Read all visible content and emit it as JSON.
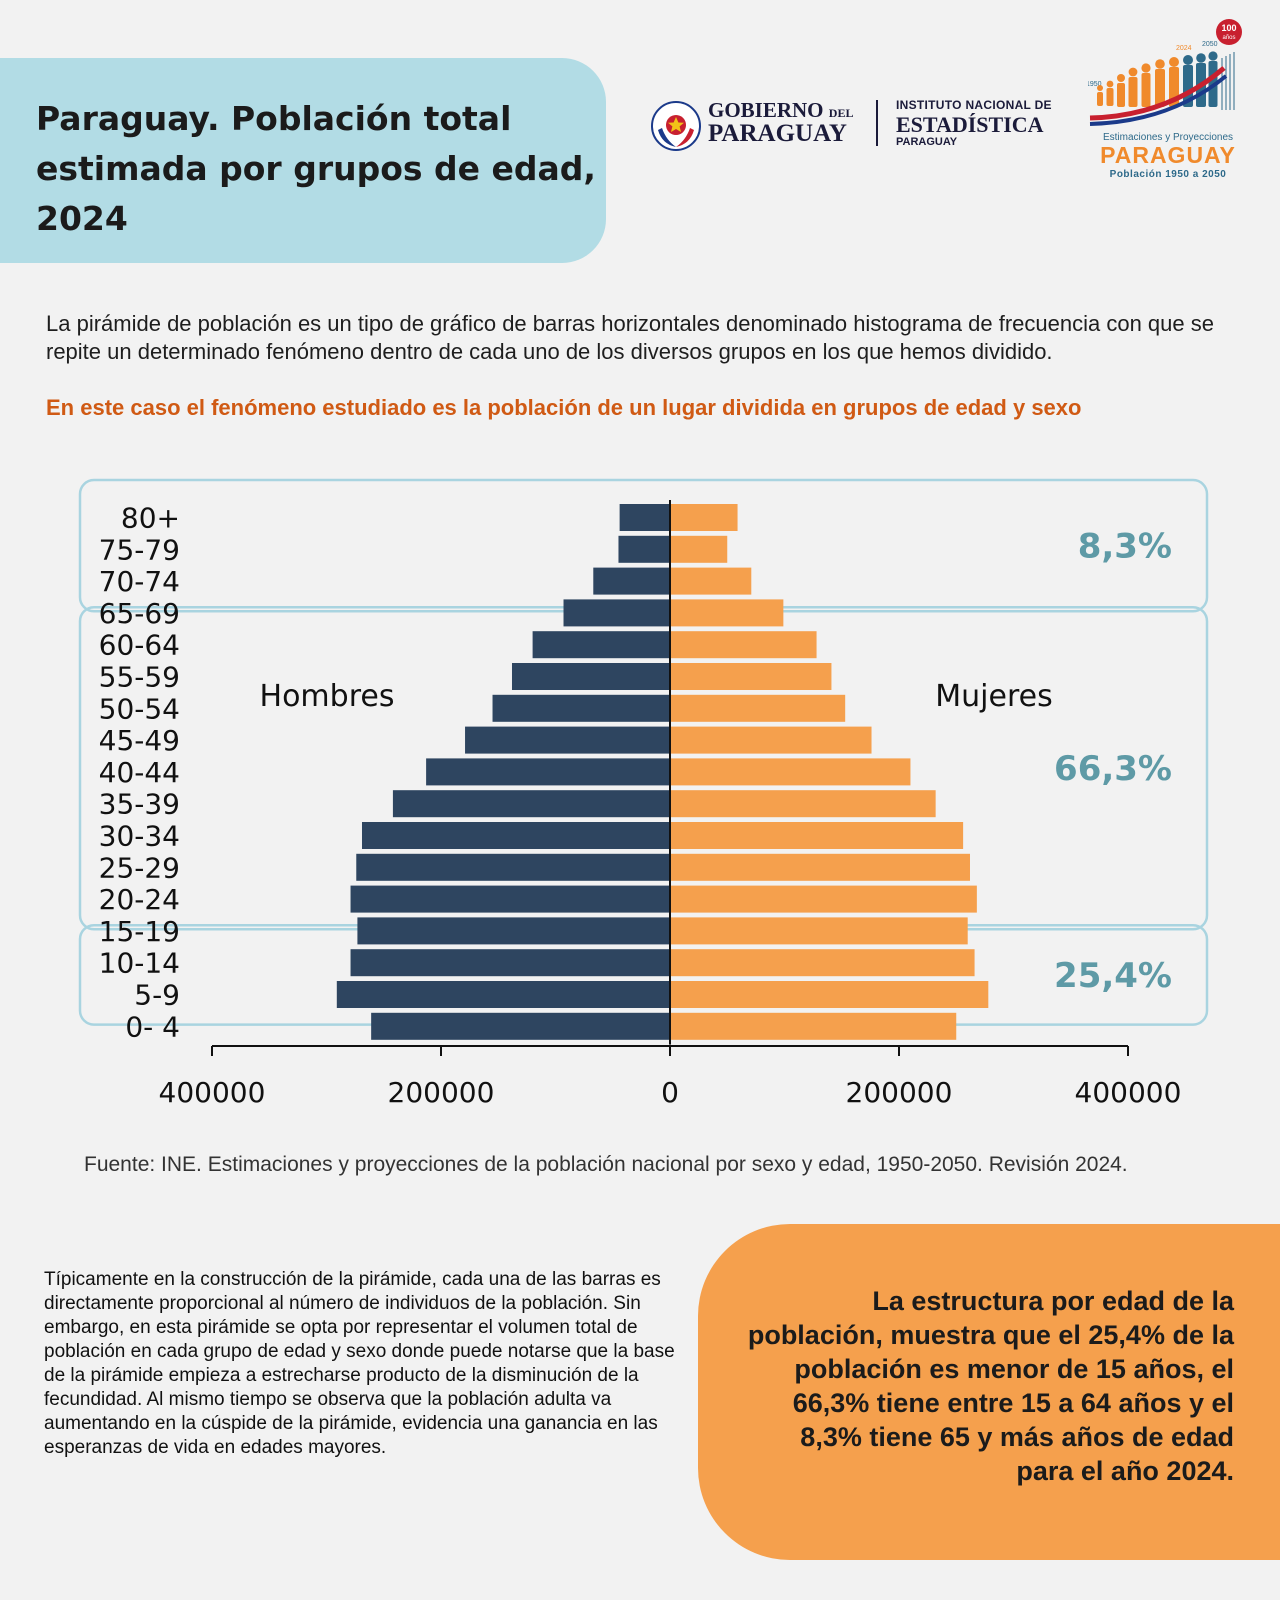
{
  "title": "Paraguay. Población total estimada por grupos de edad, 2024",
  "logos": {
    "gov_line1": "GOBIERNO",
    "gov_del": "DEL",
    "gov_line2": "PARAGUAY",
    "ine_line1": "INSTITUTO NACIONAL DE",
    "ine_line2": "ESTADÍSTICA",
    "ine_line3": "PARAGUAY",
    "proj_badge": "100 años",
    "proj_years": [
      "1950",
      "2024",
      "2050"
    ],
    "proj_sub": "Estimaciones y Proyecciones",
    "proj_main": "PARAGUAY",
    "proj_range": "Población 1950 a 2050"
  },
  "intro": {
    "text": "La pirámide de población es un tipo de gráfico de barras horizontales denominado histograma de frecuencia con que se repite un determinado fenómeno dentro de cada uno de los diversos grupos en los que hemos dividido.",
    "highlight": "En este caso el fenómeno estudiado es la población de un lugar dividida en grupos de edad y sexo"
  },
  "chart_data": {
    "type": "bar",
    "orientation": "horizontal",
    "layout": "population-pyramid",
    "categories": [
      "80+",
      "75-79",
      "70-74",
      "65-69",
      "60-64",
      "55-59",
      "50-54",
      "45-49",
      "40-44",
      "35-39",
      "30-34",
      "25-29",
      "20-24",
      "15-19",
      "10-14",
      "5-9",
      "0- 4"
    ],
    "series": [
      {
        "name": "Hombres",
        "side": "left",
        "color": "#2e4560",
        "values": [
          44000,
          45000,
          67000,
          93000,
          120000,
          138000,
          155000,
          179000,
          213000,
          242000,
          269000,
          274000,
          279000,
          273000,
          279000,
          291000,
          261000
        ]
      },
      {
        "name": "Mujeres",
        "side": "right",
        "color": "#f5a04d",
        "values": [
          59000,
          50000,
          71000,
          99000,
          128000,
          141000,
          153000,
          176000,
          210000,
          232000,
          256000,
          262000,
          268000,
          260000,
          266000,
          278000,
          250000
        ]
      }
    ],
    "xlim": [
      -400000,
      400000
    ],
    "xticks": [
      {
        "value": -400000,
        "label": "400000"
      },
      {
        "value": -200000,
        "label": "200000"
      },
      {
        "value": 0,
        "label": "0"
      },
      {
        "value": 200000,
        "label": "200000"
      },
      {
        "value": 400000,
        "label": "400000"
      }
    ],
    "groups": [
      {
        "label": "8,3%",
        "from": "65-69",
        "to": "80+"
      },
      {
        "label": "66,3%",
        "from": "15-19",
        "to": "60-64"
      },
      {
        "label": "25,4%",
        "from": "0- 4",
        "to": "10-14"
      }
    ],
    "grid": false
  },
  "source": "Fuente: INE. Estimaciones y proyecciones de la población nacional por sexo y edad, 1950-2050. Revisión 2024.",
  "note": "Típicamente en la construcción de la pirámide, cada una de las barras es directamente proporcional al número de individuos de la población. Sin embargo, en esta pirámide se opta por representar el volumen total de población en cada grupo de edad y sexo donde puede notarse que la base de la pirámide empieza a estrecharse producto de la disminución de la fecundidad. Al mismo tiempo se observa que la población adulta va aumentando en la cúspide de la pirámide, evidencia una ganancia en las esperanzas de vida en edades mayores.",
  "summary": "La estructura por edad de la población, muestra que el 25,4% de la población es menor de 15 años, el 66,3% tiene entre 15 a 64 años y el 8,3% tiene 65 y más años de edad para el año 2024.",
  "colors": {
    "title_bg": "#b2dce5",
    "men": "#2e4560",
    "women": "#f5a04d",
    "group_label": "#5e9aa6",
    "group_border": "#a9d4e0",
    "highlight_text": "#d05a14",
    "summary_bg": "#f5a04d"
  }
}
